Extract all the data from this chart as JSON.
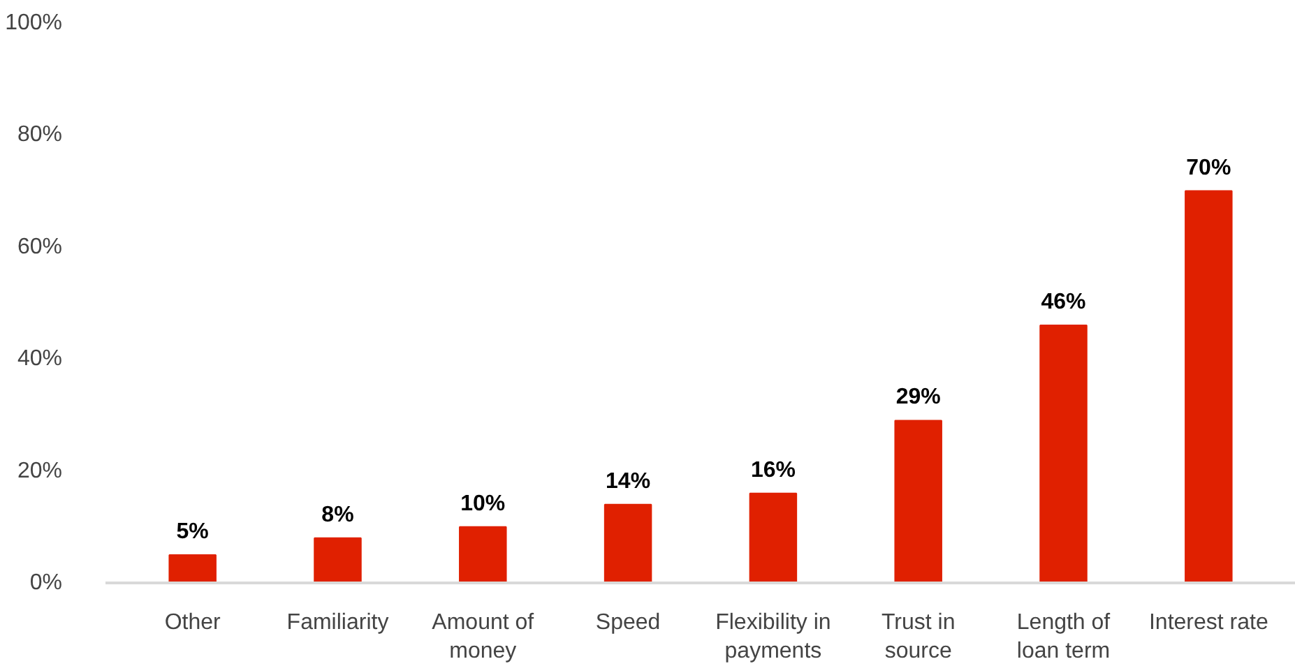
{
  "chart_data": {
    "type": "bar",
    "categories": [
      "Other",
      "Familiarity",
      "Amount of money",
      "Speed",
      "Flexibility in payments",
      "Trust in source",
      "Length of loan term",
      "Interest rate"
    ],
    "values": [
      5,
      8,
      10,
      14,
      16,
      29,
      46,
      70
    ],
    "value_labels": [
      "5%",
      "8%",
      "10%",
      "14%",
      "16%",
      "29%",
      "46%",
      "70%"
    ],
    "color": "#e02000",
    "ylim": [
      0,
      100
    ],
    "yticks": [
      {
        "value": 0,
        "label": "0%"
      },
      {
        "value": 20,
        "label": "20%"
      },
      {
        "value": 40,
        "label": "40%"
      },
      {
        "value": 60,
        "label": "60%"
      },
      {
        "value": 80,
        "label": "80%"
      },
      {
        "value": 100,
        "label": "100%"
      }
    ],
    "grid": false
  }
}
